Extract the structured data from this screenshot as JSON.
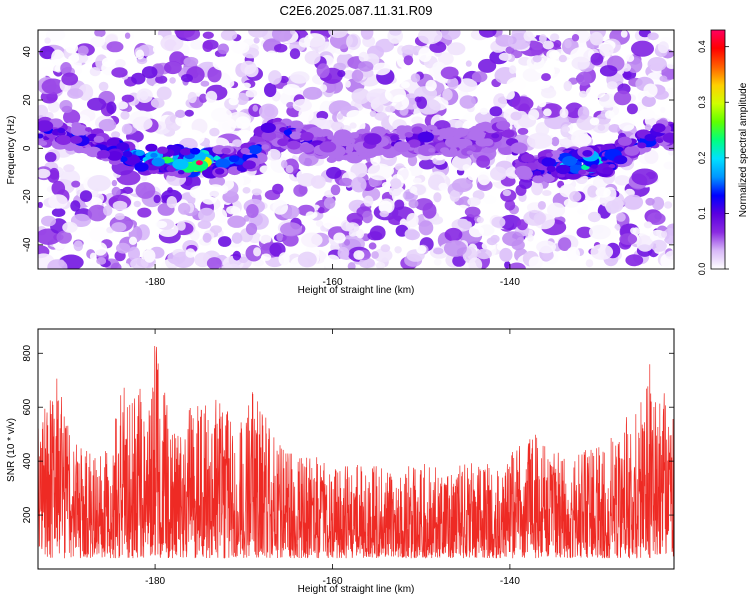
{
  "title": "C2E6.2025.087.11.31.R09",
  "chart_data": [
    {
      "type": "heatmap",
      "xlabel": "Height of straight line (km)",
      "ylabel": "Frequency (Hz)",
      "xlim": [
        -193.2,
        -121.5
      ],
      "ylim": [
        -50,
        49
      ],
      "x_ticks": [
        -180,
        -160,
        -140
      ],
      "y_ticks": [
        -40,
        -20,
        0,
        20,
        40
      ],
      "colorbar": {
        "label": "Normalized spectral amplitude",
        "range": [
          0,
          0.43
        ],
        "ticks": [
          "0.0",
          "0.1",
          "0.2",
          "0.3",
          "0.4"
        ],
        "colors": [
          "#ffffff",
          "#d8b8f8",
          "#8a2be2",
          "#5a00e0",
          "#0000ff",
          "#0096ff",
          "#00e0ff",
          "#00ff80",
          "#60ff00",
          "#d0ff00",
          "#ffd000",
          "#ff6000",
          "#ff0000",
          "#ff0060"
        ]
      },
      "signal_band": [
        {
          "x": -193,
          "freq": 7,
          "amp": 0.16
        },
        {
          "x": -188,
          "freq": 4,
          "amp": 0.14
        },
        {
          "x": -185,
          "freq": 0,
          "amp": 0.16
        },
        {
          "x": -183,
          "freq": -3,
          "amp": 0.2
        },
        {
          "x": -181,
          "freq": -5,
          "amp": 0.24
        },
        {
          "x": -179,
          "freq": -4,
          "amp": 0.26
        },
        {
          "x": -177,
          "freq": -5,
          "amp": 0.3
        },
        {
          "x": -175,
          "freq": -6,
          "amp": 0.43
        },
        {
          "x": -173,
          "freq": -5,
          "amp": 0.22
        },
        {
          "x": -171,
          "freq": -6,
          "amp": 0.2
        },
        {
          "x": -169,
          "freq": -3,
          "amp": 0.16
        },
        {
          "x": -167,
          "freq": 8,
          "amp": 0.18
        },
        {
          "x": -165,
          "freq": 6,
          "amp": 0.14
        },
        {
          "x": -160,
          "freq": 0,
          "amp": 0.1
        },
        {
          "x": -150,
          "freq": 4,
          "amp": 0.12
        },
        {
          "x": -145,
          "freq": 2,
          "amp": 0.1
        },
        {
          "x": -141,
          "freq": 7,
          "amp": 0.12
        },
        {
          "x": -138,
          "freq": -9,
          "amp": 0.18
        },
        {
          "x": -135,
          "freq": -7,
          "amp": 0.16
        },
        {
          "x": -132,
          "freq": -6,
          "amp": 0.3
        },
        {
          "x": -129,
          "freq": -5,
          "amp": 0.2
        },
        {
          "x": -126,
          "freq": 1,
          "amp": 0.14
        },
        {
          "x": -123,
          "freq": 6,
          "amp": 0.16
        }
      ]
    },
    {
      "type": "line",
      "xlabel": "Height of straight line (km)",
      "ylabel": "SNR (10 * v/v)",
      "xlim": [
        -193.2,
        -121.5
      ],
      "ylim": [
        0,
        890
      ],
      "x_ticks": [
        -180,
        -160,
        -140
      ],
      "y_ticks": [
        200,
        400,
        600,
        800
      ],
      "color": "#ee2a24",
      "envelope": [
        {
          "x": -193,
          "peak": 540
        },
        {
          "x": -191,
          "peak": 730
        },
        {
          "x": -189,
          "peak": 470
        },
        {
          "x": -187,
          "peak": 430
        },
        {
          "x": -185,
          "peak": 450
        },
        {
          "x": -184,
          "peak": 650
        },
        {
          "x": -182,
          "peak": 740
        },
        {
          "x": -181,
          "peak": 520
        },
        {
          "x": -179.9,
          "peak": 890
        },
        {
          "x": -178,
          "peak": 490
        },
        {
          "x": -176,
          "peak": 630
        },
        {
          "x": -174,
          "peak": 640
        },
        {
          "x": -172,
          "peak": 610
        },
        {
          "x": -170,
          "peak": 550
        },
        {
          "x": -169,
          "peak": 720
        },
        {
          "x": -167,
          "peak": 510
        },
        {
          "x": -165,
          "peak": 440
        },
        {
          "x": -162,
          "peak": 420
        },
        {
          "x": -160,
          "peak": 380
        },
        {
          "x": -157,
          "peak": 400
        },
        {
          "x": -153,
          "peak": 370
        },
        {
          "x": -150,
          "peak": 400
        },
        {
          "x": -147,
          "peak": 370
        },
        {
          "x": -144,
          "peak": 400
        },
        {
          "x": -141,
          "peak": 380
        },
        {
          "x": -139,
          "peak": 470
        },
        {
          "x": -137,
          "peak": 500
        },
        {
          "x": -135,
          "peak": 430
        },
        {
          "x": -132,
          "peak": 440
        },
        {
          "x": -129,
          "peak": 480
        },
        {
          "x": -127,
          "peak": 560
        },
        {
          "x": -125,
          "peak": 630
        },
        {
          "x": -124.3,
          "peak": 790
        },
        {
          "x": -123,
          "peak": 690
        },
        {
          "x": -121.5,
          "peak": 560
        }
      ]
    }
  ]
}
